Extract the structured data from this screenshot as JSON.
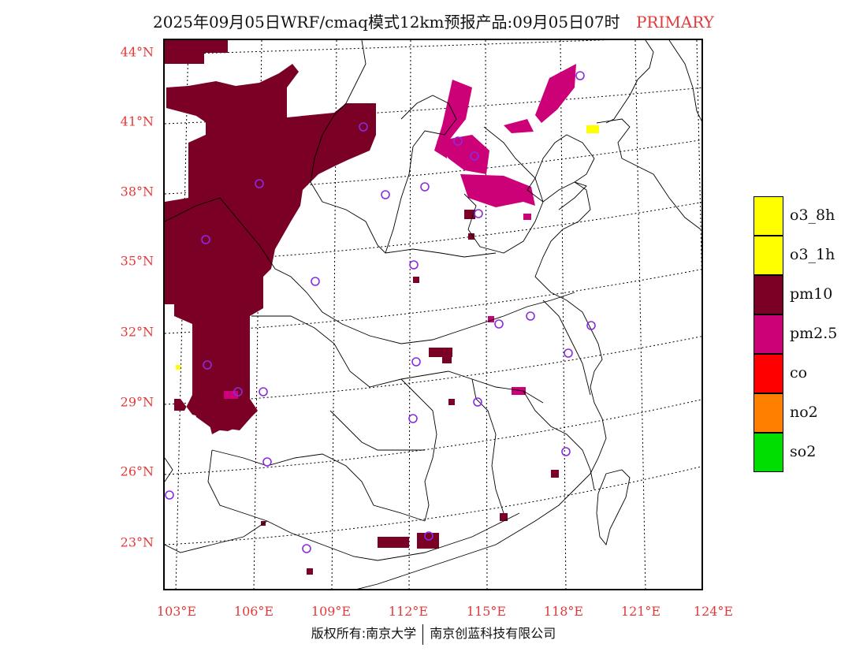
{
  "title": {
    "main": "2025年09月05日WRF/cmaq模式12km预报产品:09月05日07时",
    "tag": "PRIMARY"
  },
  "axes": {
    "lat_labels": [
      "44°N",
      "41°N",
      "38°N",
      "35°N",
      "32°N",
      "29°N",
      "26°N",
      "23°N"
    ],
    "lon_labels": [
      "103°E",
      "106°E",
      "109°E",
      "112°E",
      "115°E",
      "118°E",
      "121°E",
      "124°E"
    ]
  },
  "legend": {
    "items": [
      {
        "label": "o3_8h",
        "color": "#ffff00"
      },
      {
        "label": "o3_1h",
        "color": "#ffff00"
      },
      {
        "label": "pm10",
        "color": "#7a0026"
      },
      {
        "label": "pm2.5",
        "color": "#cc0077"
      },
      {
        "label": "co",
        "color": "#ff0000"
      },
      {
        "label": "no2",
        "color": "#ff7f00"
      },
      {
        "label": "so2",
        "color": "#00dd00"
      }
    ]
  },
  "footer": {
    "left": "版权所有:南京大学",
    "right": "南京创蓝科技有限公司"
  },
  "colors": {
    "accent_red": "#e23a3a",
    "pm10": "#7a0026",
    "pm25": "#cc0077",
    "o3": "#ffff00",
    "station": "#8a2be2"
  }
}
